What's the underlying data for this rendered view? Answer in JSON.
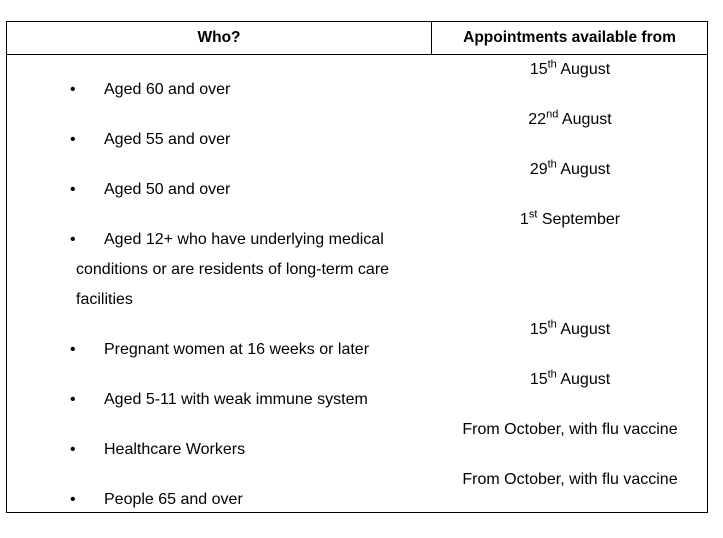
{
  "table": {
    "headers": [
      "Who?",
      "Appointments available from"
    ],
    "who": [
      {
        "lines": [
          "Aged 60 and over"
        ]
      },
      {
        "lines": [
          "Aged 55 and over"
        ]
      },
      {
        "lines": [
          "Aged 50 and over"
        ]
      },
      {
        "lines": [
          "Aged 12+ who have underlying medical",
          "conditions or are residents of long-term care",
          "facilities"
        ]
      },
      {
        "lines": [
          "Pregnant women at 16 weeks or   later"
        ]
      },
      {
        "lines": [
          "Aged 5-11 with weak immune system"
        ]
      },
      {
        "lines": [
          "Healthcare Workers"
        ]
      },
      {
        "lines": [
          "People 65 and over"
        ]
      }
    ],
    "dates": [
      {
        "day": "15",
        "suffix": "th",
        "rest": " August"
      },
      {
        "day": "22",
        "suffix": "nd",
        "rest": " August"
      },
      {
        "day": "29",
        "suffix": "th",
        "rest": " August"
      },
      {
        "day": "1",
        "suffix": "st",
        "rest": " September"
      },
      {
        "day": "15",
        "suffix": "th",
        "rest": " August"
      },
      {
        "day": "15",
        "suffix": "th",
        "rest": " August"
      },
      {
        "day": "From October, with flu vaccine",
        "suffix": "",
        "rest": ""
      },
      {
        "day": "From October, with flu vaccine",
        "suffix": "",
        "rest": ""
      }
    ],
    "bullet": "•"
  }
}
